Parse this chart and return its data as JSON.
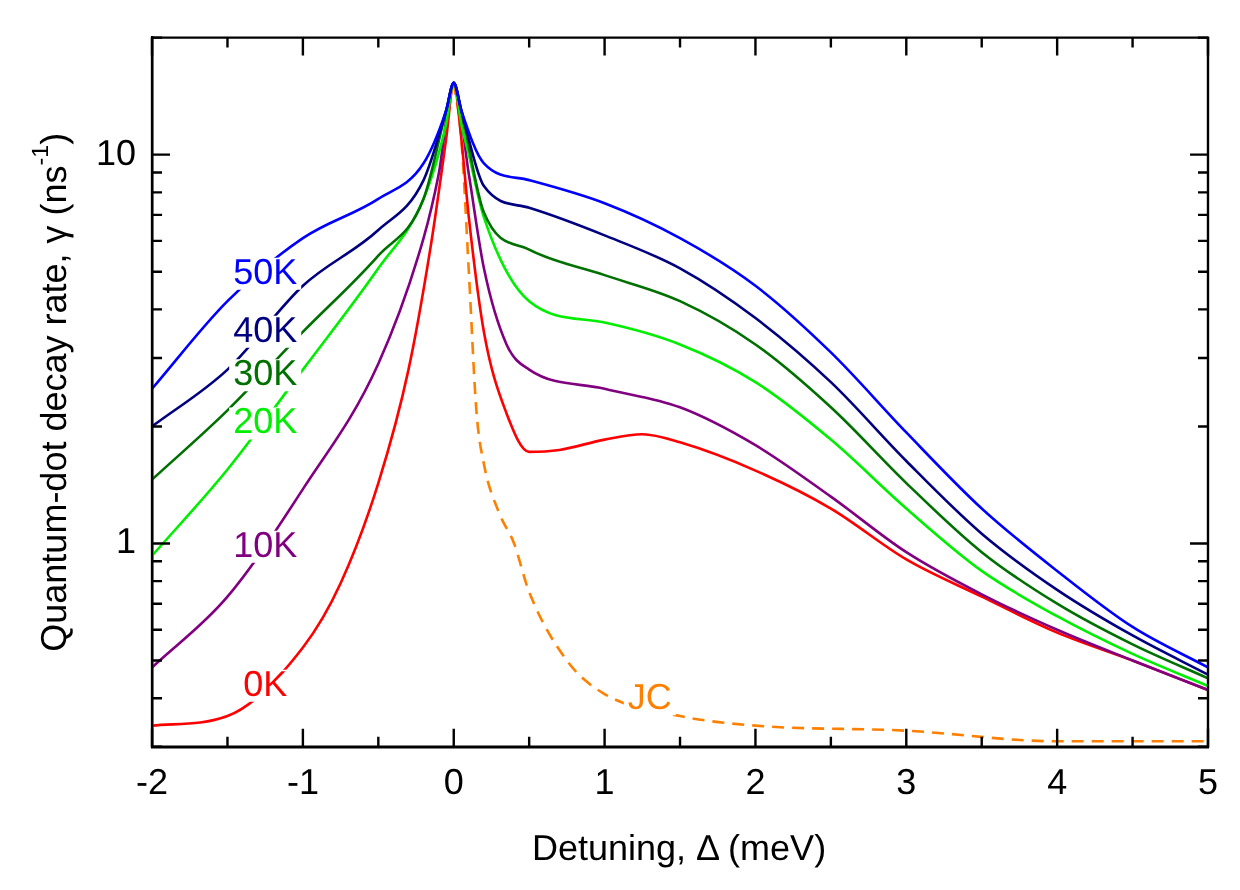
{
  "chart_data": {
    "type": "line",
    "xlabel": "Detuning, Δ (meV)",
    "ylabel": "Quantum-dot decay rate, γ (ns$^{-1}$)",
    "log": "y",
    "grid": false,
    "legend": false,
    "marker": "none",
    "xlim": [
      -2,
      5
    ],
    "xticks": [
      -2,
      {
        "value": -1.5,
        "label": null
      },
      -1,
      {
        "value": -0.5,
        "label": null
      },
      0,
      {
        "value": 0.5,
        "label": null
      },
      1,
      {
        "value": 1.5,
        "label": null
      },
      2,
      {
        "value": 2.5,
        "label": null
      },
      3,
      {
        "value": 3.5,
        "label": null
      },
      4,
      {
        "value": 4.5,
        "label": null
      },
      5
    ],
    "ylim": [
      0.3,
      20
    ],
    "yticks": [
      {
        "value": 0.3,
        "label": null
      },
      {
        "value": 0.4,
        "label": null
      },
      {
        "value": 0.5,
        "label": null
      },
      {
        "value": 0.6,
        "label": null
      },
      {
        "value": 0.7,
        "label": null
      },
      {
        "value": 0.8,
        "label": null
      },
      {
        "value": 0.9,
        "label": null
      },
      1,
      {
        "value": 2,
        "label": null
      },
      {
        "value": 3,
        "label": null
      },
      {
        "value": 4,
        "label": null
      },
      {
        "value": 5,
        "label": null
      },
      {
        "value": 6,
        "label": null
      },
      {
        "value": 7,
        "label": null
      },
      {
        "value": 8,
        "label": null
      },
      {
        "value": 9,
        "label": null
      },
      10,
      {
        "value": 20,
        "label": null
      }
    ],
    "series": [
      {
        "name": "50K",
        "color": "#0000ff",
        "x": [
          -2,
          -1.5,
          -1,
          -0.5,
          -0.2,
          -0.05,
          0,
          0.05,
          0.2,
          0.5,
          1,
          1.5,
          2,
          2.5,
          3,
          3.5,
          4,
          4.5,
          5
        ],
        "values": [
          2.5,
          4.2,
          6.1,
          7.7,
          9.5,
          13,
          15.3,
          13,
          9.5,
          8.6,
          7.5,
          6.1,
          4.6,
          3.1,
          1.93,
          1.23,
          0.85,
          0.61,
          0.48
        ]
      },
      {
        "name": "40K",
        "color": "#000080",
        "x": [
          -2,
          -1.5,
          -1,
          -0.5,
          -0.2,
          -0.05,
          0,
          0.05,
          0.2,
          0.5,
          1,
          1.5,
          2,
          2.5,
          3,
          3.5,
          4,
          4.5,
          5
        ],
        "values": [
          2.0,
          2.8,
          4.6,
          6.4,
          8.6,
          13,
          15.3,
          13,
          8.3,
          7.3,
          6.2,
          5.1,
          3.8,
          2.6,
          1.63,
          1.06,
          0.76,
          0.58,
          0.46
        ]
      },
      {
        "name": "30K",
        "color": "#007000",
        "x": [
          -2,
          -1.5,
          -1,
          -0.5,
          -0.2,
          -0.05,
          0,
          0.05,
          0.2,
          0.5,
          1,
          1.5,
          2,
          2.5,
          3,
          3.5,
          4,
          4.5,
          5
        ],
        "values": [
          1.46,
          2.2,
          3.5,
          5.5,
          7.7,
          13,
          15.3,
          13,
          7.1,
          5.7,
          4.9,
          4.2,
          3.25,
          2.24,
          1.43,
          0.95,
          0.7,
          0.55,
          0.45
        ]
      },
      {
        "name": "20K",
        "color": "#00ee00",
        "x": [
          -2,
          -1.5,
          -1,
          -0.5,
          -0.2,
          -0.05,
          0,
          0.05,
          0.1,
          0.2,
          0.5,
          1,
          1.5,
          2,
          2.5,
          3,
          3.5,
          4,
          4.5,
          5
        ],
        "values": [
          0.93,
          1.55,
          2.8,
          5.1,
          7.7,
          12,
          15.3,
          12,
          10,
          6.9,
          4.2,
          3.7,
          3.25,
          2.6,
          1.85,
          1.23,
          0.85,
          0.65,
          0.52,
          0.43
        ]
      },
      {
        "name": "10K",
        "color": "#800080",
        "x": [
          -2,
          -1.5,
          -1,
          -0.5,
          -0.2,
          -0.1,
          0,
          0.1,
          0.2,
          0.35,
          0.5,
          1,
          1.5,
          2,
          2.5,
          3,
          3.5,
          4,
          4.5,
          5
        ],
        "values": [
          0.48,
          0.73,
          1.38,
          2.9,
          6.1,
          8.9,
          15.3,
          8.9,
          5.1,
          3.25,
          2.8,
          2.5,
          2.24,
          1.79,
          1.32,
          0.95,
          0.74,
          0.6,
          0.5,
          0.42
        ]
      },
      {
        "name": "0K",
        "color": "#ff0000",
        "x": [
          -2,
          -1.5,
          -1,
          -0.75,
          -0.5,
          -0.3,
          -0.15,
          -0.05,
          0,
          0.05,
          0.1,
          0.2,
          0.35,
          0.5,
          0.7,
          1,
          1.25,
          1.5,
          2,
          2.5,
          3,
          3.5,
          4,
          4.5,
          5
        ],
        "values": [
          0.34,
          0.36,
          0.54,
          0.79,
          1.43,
          2.8,
          5.9,
          11,
          15.3,
          11,
          6.9,
          3.5,
          2.16,
          1.72,
          1.74,
          1.85,
          1.91,
          1.82,
          1.54,
          1.23,
          0.91,
          0.73,
          0.59,
          0.5,
          0.42
        ]
      },
      {
        "name": "JC",
        "color": "#ff8000",
        "line_style": "dashed",
        "x": [
          0,
          0.05,
          0.1,
          0.15,
          0.2,
          0.3,
          0.4,
          0.5,
          0.75,
          1,
          1.5,
          2,
          3,
          4,
          5
        ],
        "values": [
          15.3,
          11,
          5,
          2.2,
          1.6,
          1.2,
          1.0,
          0.75,
          0.5,
          0.41,
          0.36,
          0.34,
          0.33,
          0.31,
          0.31
        ]
      }
    ]
  }
}
